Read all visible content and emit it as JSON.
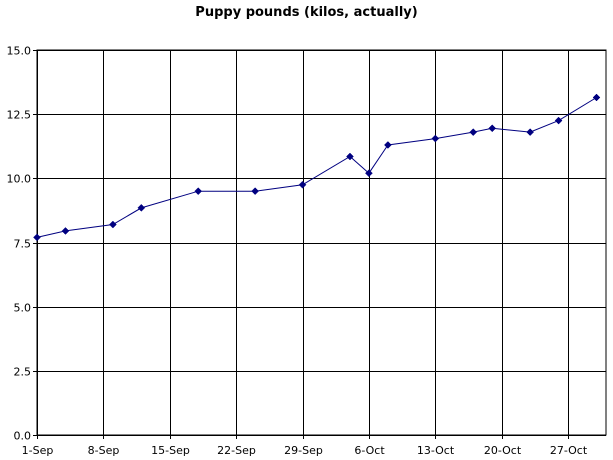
{
  "chart_data": {
    "type": "line",
    "title": "Puppy pounds (kilos, actually)",
    "xlabel": "",
    "ylabel": "",
    "xlim": [
      "2007-09-01",
      "2007-10-31"
    ],
    "ylim": [
      0,
      15
    ],
    "x_ticks": [
      "1-Sep",
      "8-Sep",
      "15-Sep",
      "22-Sep",
      "29-Sep",
      "6-Oct",
      "13-Oct",
      "20-Oct",
      "27-Oct"
    ],
    "y_ticks": [
      "0.0",
      "2.5",
      "5.0",
      "7.5",
      "10.0",
      "12.5",
      "15.0"
    ],
    "grid": true,
    "legend": "none",
    "series": [
      {
        "color": "#000080",
        "marker": "diamond",
        "points": [
          {
            "x": "2007-09-01",
            "y": 7.7
          },
          {
            "x": "2007-09-04",
            "y": 7.95
          },
          {
            "x": "2007-09-09",
            "y": 8.2
          },
          {
            "x": "2007-09-12",
            "y": 8.85
          },
          {
            "x": "2007-09-18",
            "y": 9.5
          },
          {
            "x": "2007-09-24",
            "y": 9.5
          },
          {
            "x": "2007-09-29",
            "y": 9.75
          },
          {
            "x": "2007-10-04",
            "y": 10.85
          },
          {
            "x": "2007-10-06",
            "y": 10.2
          },
          {
            "x": "2007-10-08",
            "y": 11.3
          },
          {
            "x": "2007-10-13",
            "y": 11.55
          },
          {
            "x": "2007-10-17",
            "y": 11.8
          },
          {
            "x": "2007-10-19",
            "y": 11.95
          },
          {
            "x": "2007-10-23",
            "y": 11.8
          },
          {
            "x": "2007-10-26",
            "y": 12.25
          },
          {
            "x": "2007-10-30",
            "y": 13.15
          }
        ]
      }
    ]
  }
}
